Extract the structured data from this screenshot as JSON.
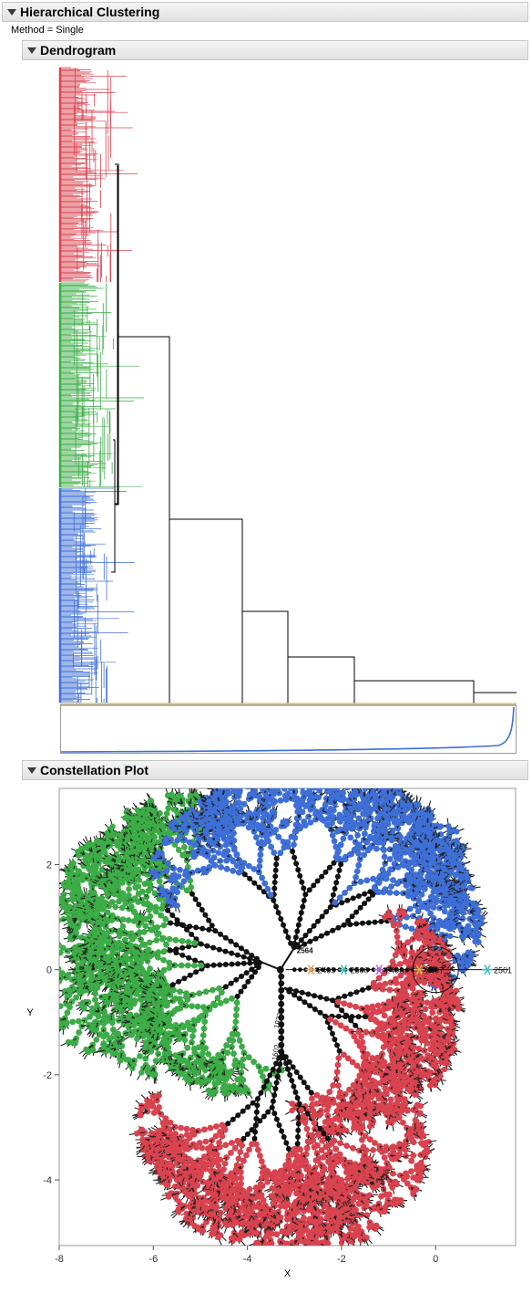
{
  "report": {
    "title": "Hierarchical Clustering",
    "method_label": "Method =",
    "method_value": "Single"
  },
  "dendrogram": {
    "title": "Dendrogram",
    "cluster_colors": {
      "red": "#d9434f",
      "green": "#3cac47",
      "blue": "#3e6fd6",
      "black": "#000000"
    }
  },
  "constellation": {
    "title": "Constellation Plot",
    "x_axis": {
      "label": "X",
      "ticks": [
        "-8",
        "-6",
        "-4",
        "-2",
        "0"
      ],
      "range": [
        -8,
        1.7
      ]
    },
    "y_axis": {
      "label": "Y",
      "ticks": [
        "2",
        "0",
        "-2",
        "-4"
      ],
      "range": [
        -5.25,
        3.45
      ]
    },
    "point_labels": [
      "2564",
      "2499",
      "2500",
      "2498",
      "2497",
      "2501",
      "1937",
      "1602"
    ],
    "arm_markers": [
      {
        "label": "2499",
        "x": -2.65,
        "color": "#e8a35c"
      },
      {
        "label": "2500",
        "x": -1.95,
        "color": "#3fc0c0"
      },
      {
        "label": "2498",
        "x": -1.2,
        "color": "#b76ad6"
      },
      {
        "label": "2497",
        "x": -0.35,
        "color": "#e0b33a"
      },
      {
        "label": "2501",
        "x": 1.1,
        "color": "#3fc0c0"
      }
    ],
    "colors": {
      "red": "#d9434f",
      "green": "#3cac47",
      "blue": "#3e6fd6"
    }
  }
}
